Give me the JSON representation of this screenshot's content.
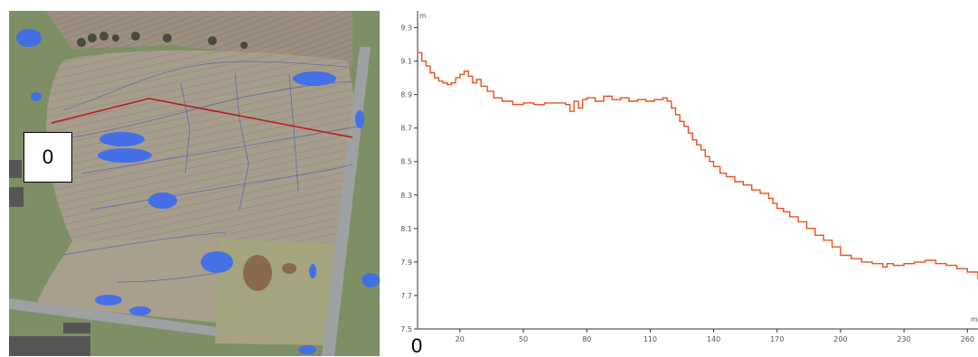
{
  "map": {
    "start_marker_label": "0"
  },
  "bottom_label": "0",
  "chart_data": {
    "type": "line",
    "title": "",
    "ylabel": "m",
    "xlabel": "m",
    "xlim": [
      0,
      265
    ],
    "ylim": [
      7.5,
      9.4
    ],
    "x_ticks": [
      20,
      50,
      80,
      110,
      140,
      170,
      200,
      230,
      260
    ],
    "y_ticks": [
      7.5,
      7.7,
      7.9,
      8.1,
      8.3,
      8.5,
      8.7,
      8.9,
      9.1,
      9.3
    ],
    "x_tick_labels": [
      "20",
      "50",
      "80",
      "110",
      "140",
      "170",
      "200",
      "230",
      "260"
    ],
    "y_tick_labels": [
      "7.5",
      "7.7",
      "7.9",
      "8.1",
      "8.3",
      "8.5",
      "8.7",
      "8.9",
      "9.1",
      "9.3"
    ],
    "grid": false,
    "line_color": "#e8531f",
    "series": [
      {
        "x": [
          0,
          2,
          4,
          6,
          8,
          10,
          12,
          14,
          16,
          18,
          20,
          22,
          24,
          26,
          28,
          30,
          33,
          36,
          40,
          45,
          50,
          55,
          60,
          65,
          70,
          72,
          74,
          76,
          78,
          80,
          84,
          88,
          92,
          96,
          100,
          104,
          108,
          112,
          116,
          118,
          120,
          122,
          124,
          126,
          128,
          130,
          132,
          134,
          136,
          138,
          140,
          143,
          146,
          150,
          154,
          158,
          162,
          166,
          168,
          170,
          173,
          176,
          180,
          184,
          188,
          192,
          196,
          200,
          205,
          210,
          215,
          220,
          222,
          225,
          230,
          235,
          240,
          245,
          250,
          255,
          260,
          265
        ],
        "y": [
          9.15,
          9.1,
          9.07,
          9.03,
          9.0,
          8.98,
          8.97,
          8.96,
          8.97,
          9.0,
          9.02,
          9.04,
          9.01,
          8.97,
          8.99,
          8.95,
          8.92,
          8.88,
          8.86,
          8.84,
          8.85,
          8.84,
          8.85,
          8.85,
          8.84,
          8.8,
          8.86,
          8.82,
          8.87,
          8.88,
          8.86,
          8.89,
          8.87,
          8.88,
          8.86,
          8.87,
          8.86,
          8.87,
          8.88,
          8.86,
          8.82,
          8.78,
          8.74,
          8.71,
          8.67,
          8.63,
          8.6,
          8.57,
          8.53,
          8.5,
          8.47,
          8.43,
          8.41,
          8.38,
          8.36,
          8.33,
          8.31,
          8.28,
          8.25,
          8.22,
          8.2,
          8.17,
          8.14,
          8.1,
          8.06,
          8.03,
          7.99,
          7.94,
          7.92,
          7.9,
          7.89,
          7.87,
          7.89,
          7.88,
          7.89,
          7.9,
          7.91,
          7.89,
          7.88,
          7.86,
          7.84,
          7.8
        ]
      }
    ]
  }
}
